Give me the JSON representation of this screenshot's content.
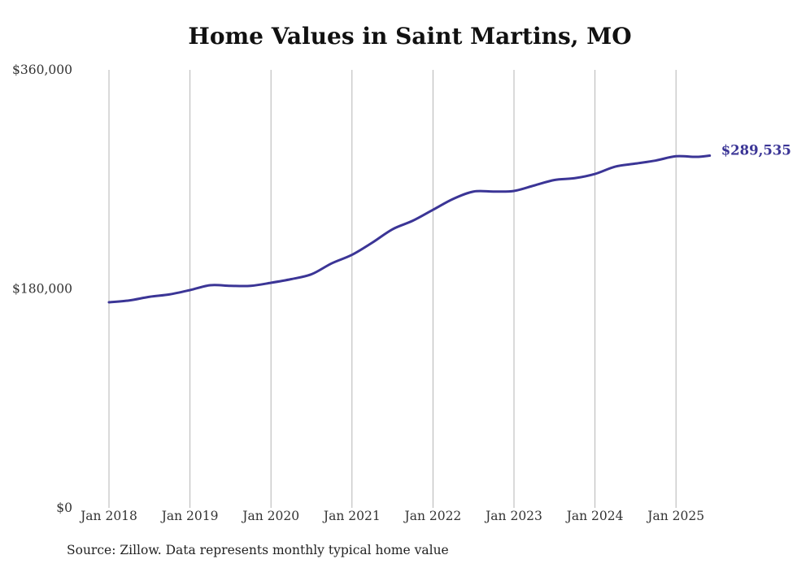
{
  "chart_data": {
    "type": "line",
    "title": "Home Values in Saint Martins, MO",
    "source": "Source: Zillow. Data represents monthly typical home value",
    "y_ticks": [
      {
        "value": 0,
        "label": "$0"
      },
      {
        "value": 180000,
        "label": "$180,000"
      },
      {
        "value": 360000,
        "label": "$360,000"
      }
    ],
    "ylim": [
      0,
      360000
    ],
    "x_ticks": [
      "Jan 2018",
      "Jan 2019",
      "Jan 2020",
      "Jan 2021",
      "Jan 2022",
      "Jan 2023",
      "Jan 2024",
      "Jan 2025"
    ],
    "xlim": [
      "2018-01",
      "2025-06"
    ],
    "grid": "vertical at x ticks",
    "end_label": "$289,535",
    "series": [
      {
        "color": "#3b3596",
        "points": [
          {
            "x": "2018-01",
            "y": 169000
          },
          {
            "x": "2018-04",
            "y": 170500
          },
          {
            "x": "2018-07",
            "y": 173500
          },
          {
            "x": "2018-10",
            "y": 175500
          },
          {
            "x": "2019-01",
            "y": 179000
          },
          {
            "x": "2019-04",
            "y": 183000
          },
          {
            "x": "2019-07",
            "y": 182500
          },
          {
            "x": "2019-10",
            "y": 182500
          },
          {
            "x": "2020-01",
            "y": 185000
          },
          {
            "x": "2020-04",
            "y": 188000
          },
          {
            "x": "2020-07",
            "y": 192000
          },
          {
            "x": "2020-10",
            "y": 201000
          },
          {
            "x": "2021-01",
            "y": 208000
          },
          {
            "x": "2021-04",
            "y": 218000
          },
          {
            "x": "2021-07",
            "y": 229000
          },
          {
            "x": "2021-10",
            "y": 236000
          },
          {
            "x": "2022-01",
            "y": 245000
          },
          {
            "x": "2022-04",
            "y": 254000
          },
          {
            "x": "2022-07",
            "y": 260000
          },
          {
            "x": "2022-10",
            "y": 260000
          },
          {
            "x": "2023-01",
            "y": 260500
          },
          {
            "x": "2023-04",
            "y": 265000
          },
          {
            "x": "2023-07",
            "y": 269500
          },
          {
            "x": "2023-10",
            "y": 271000
          },
          {
            "x": "2024-01",
            "y": 274500
          },
          {
            "x": "2024-04",
            "y": 280500
          },
          {
            "x": "2024-07",
            "y": 283000
          },
          {
            "x": "2024-10",
            "y": 285500
          },
          {
            "x": "2025-01",
            "y": 289000
          },
          {
            "x": "2025-04",
            "y": 288500
          },
          {
            "x": "2025-06",
            "y": 289535
          }
        ]
      }
    ]
  }
}
